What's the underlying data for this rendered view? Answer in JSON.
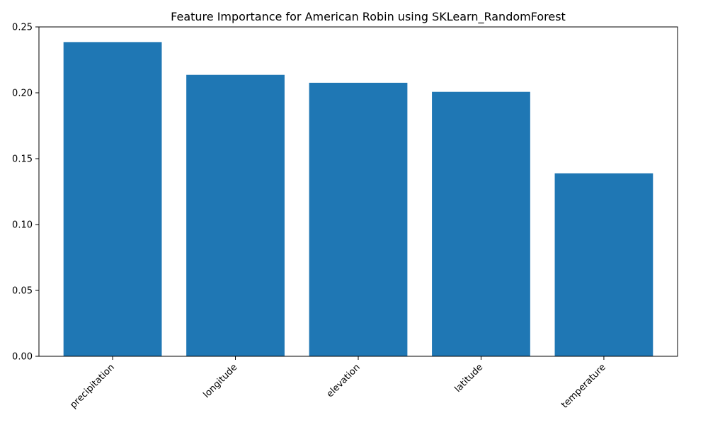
{
  "chart_data": {
    "type": "bar",
    "title": "Feature Importance for American Robin using SKLearn_RandomForest",
    "xlabel": "",
    "ylabel": "",
    "categories": [
      "precipitation",
      "longitude",
      "elevation",
      "latitude",
      "temperature"
    ],
    "values": [
      0.2385,
      0.2136,
      0.2076,
      0.2007,
      0.1389
    ],
    "ylim": [
      0,
      0.25
    ],
    "yticks": [
      "0.00",
      "0.05",
      "0.10",
      "0.15",
      "0.20",
      "0.25"
    ],
    "bar_color": "#1f77b4",
    "grid": false,
    "legend": "none"
  }
}
